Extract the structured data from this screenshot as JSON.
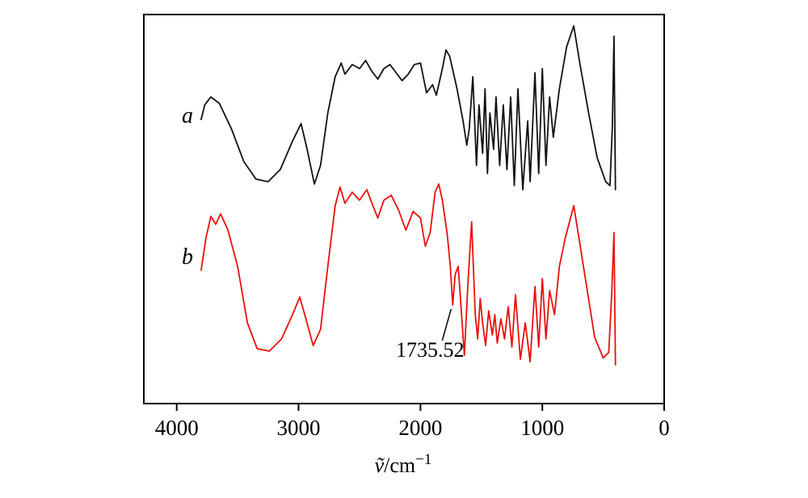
{
  "chart_data": {
    "type": "line",
    "title": "",
    "xlabel": {
      "symbol": "ṽ",
      "unit": "/cm",
      "exponent": "−1"
    },
    "x_axis": {
      "min": 0,
      "max": 4270,
      "reversed": true,
      "ticks": [
        4000,
        3000,
        2000,
        1000,
        0
      ]
    },
    "y_axis": {
      "label": ""
    },
    "series": [
      {
        "name": "a",
        "color": "#111111",
        "points": [
          [
            3800,
            43.8
          ],
          [
            3770,
            52.4
          ],
          [
            3720,
            57.1
          ],
          [
            3650,
            53.3
          ],
          [
            3550,
            38.1
          ],
          [
            3450,
            19.0
          ],
          [
            3350,
            8.6
          ],
          [
            3250,
            7.1
          ],
          [
            3150,
            14.3
          ],
          [
            3050,
            31.0
          ],
          [
            2980,
            41.4
          ],
          [
            2930,
            26.2
          ],
          [
            2870,
            5.7
          ],
          [
            2820,
            16.7
          ],
          [
            2760,
            47.6
          ],
          [
            2700,
            69.0
          ],
          [
            2650,
            77.1
          ],
          [
            2620,
            70.5
          ],
          [
            2560,
            76.2
          ],
          [
            2500,
            73.8
          ],
          [
            2450,
            78.6
          ],
          [
            2400,
            72.4
          ],
          [
            2350,
            67.6
          ],
          [
            2300,
            73.8
          ],
          [
            2250,
            76.2
          ],
          [
            2200,
            71.4
          ],
          [
            2150,
            66.7
          ],
          [
            2100,
            70.5
          ],
          [
            2050,
            76.2
          ],
          [
            2000,
            77.1
          ],
          [
            1950,
            59.5
          ],
          [
            1900,
            64.3
          ],
          [
            1870,
            58.1
          ],
          [
            1820,
            73.8
          ],
          [
            1790,
            84.8
          ],
          [
            1760,
            81.0
          ],
          [
            1700,
            61.9
          ],
          [
            1650,
            42.9
          ],
          [
            1620,
            28.6
          ],
          [
            1600,
            38.1
          ],
          [
            1570,
            69.0
          ],
          [
            1540,
            16.7
          ],
          [
            1520,
            52.4
          ],
          [
            1490,
            23.8
          ],
          [
            1470,
            61.9
          ],
          [
            1450,
            11.9
          ],
          [
            1430,
            47.6
          ],
          [
            1400,
            26.2
          ],
          [
            1380,
            57.1
          ],
          [
            1350,
            16.7
          ],
          [
            1320,
            52.4
          ],
          [
            1290,
            14.3
          ],
          [
            1260,
            57.1
          ],
          [
            1230,
            4.8
          ],
          [
            1200,
            61.9
          ],
          [
            1160,
            2.4
          ],
          [
            1120,
            42.9
          ],
          [
            1100,
            7.1
          ],
          [
            1060,
            71.4
          ],
          [
            1030,
            11.9
          ],
          [
            1000,
            73.8
          ],
          [
            970,
            16.7
          ],
          [
            940,
            57.1
          ],
          [
            910,
            33.3
          ],
          [
            860,
            61.9
          ],
          [
            800,
            86.7
          ],
          [
            742,
            99.0
          ],
          [
            690,
            76.2
          ],
          [
            620,
            47.6
          ],
          [
            550,
            21.4
          ],
          [
            480,
            7.1
          ],
          [
            445,
            4.8
          ],
          [
            425,
            40.0
          ],
          [
            412,
            92.9
          ],
          [
            400,
            2.4
          ]
        ]
      },
      {
        "name": "b",
        "color": "#e8100e",
        "points": [
          [
            3800,
            52.2
          ],
          [
            3760,
            69.6
          ],
          [
            3720,
            81.3
          ],
          [
            3680,
            77.0
          ],
          [
            3640,
            82.6
          ],
          [
            3580,
            73.9
          ],
          [
            3500,
            54.3
          ],
          [
            3420,
            23.9
          ],
          [
            3340,
            10.0
          ],
          [
            3240,
            8.7
          ],
          [
            3140,
            15.2
          ],
          [
            3050,
            28.3
          ],
          [
            2990,
            37.8
          ],
          [
            2940,
            26.1
          ],
          [
            2880,
            11.7
          ],
          [
            2820,
            20.4
          ],
          [
            2760,
            54.3
          ],
          [
            2700,
            87.0
          ],
          [
            2660,
            97.0
          ],
          [
            2620,
            88.3
          ],
          [
            2560,
            94.3
          ],
          [
            2500,
            90.0
          ],
          [
            2440,
            95.7
          ],
          [
            2390,
            87.0
          ],
          [
            2350,
            80.4
          ],
          [
            2300,
            90.0
          ],
          [
            2240,
            92.6
          ],
          [
            2180,
            84.8
          ],
          [
            2120,
            73.9
          ],
          [
            2060,
            83.9
          ],
          [
            2000,
            80.4
          ],
          [
            1960,
            65.2
          ],
          [
            1920,
            72.6
          ],
          [
            1880,
            94.3
          ],
          [
            1850,
            98.7
          ],
          [
            1820,
            90.0
          ],
          [
            1780,
            71.7
          ],
          [
            1755,
            54.3
          ],
          [
            1735,
            33.5
          ],
          [
            1715,
            50.0
          ],
          [
            1690,
            54.3
          ],
          [
            1660,
            26.1
          ],
          [
            1640,
            6.5
          ],
          [
            1610,
            45.7
          ],
          [
            1580,
            78.3
          ],
          [
            1550,
            28.3
          ],
          [
            1530,
            15.2
          ],
          [
            1510,
            37.0
          ],
          [
            1490,
            23.9
          ],
          [
            1465,
            11.7
          ],
          [
            1440,
            30.4
          ],
          [
            1410,
            17.4
          ],
          [
            1390,
            28.3
          ],
          [
            1370,
            13.0
          ],
          [
            1340,
            26.1
          ],
          [
            1310,
            15.2
          ],
          [
            1280,
            32.6
          ],
          [
            1250,
            10.9
          ],
          [
            1220,
            39.1
          ],
          [
            1180,
            4.3
          ],
          [
            1140,
            23.9
          ],
          [
            1100,
            3.0
          ],
          [
            1060,
            43.5
          ],
          [
            1030,
            10.9
          ],
          [
            1000,
            47.8
          ],
          [
            970,
            15.2
          ],
          [
            940,
            41.3
          ],
          [
            900,
            28.3
          ],
          [
            860,
            54.3
          ],
          [
            810,
            70.0
          ],
          [
            742,
            87.0
          ],
          [
            700,
            70.0
          ],
          [
            640,
            45.0
          ],
          [
            570,
            16.0
          ],
          [
            500,
            5.0
          ],
          [
            455,
            8.0
          ],
          [
            430,
            40.0
          ],
          [
            412,
            72.6
          ],
          [
            400,
            1.3
          ]
        ]
      }
    ],
    "annotations": [
      {
        "text": "1735.52",
        "series": "b",
        "wavenumber": 1735
      }
    ]
  }
}
